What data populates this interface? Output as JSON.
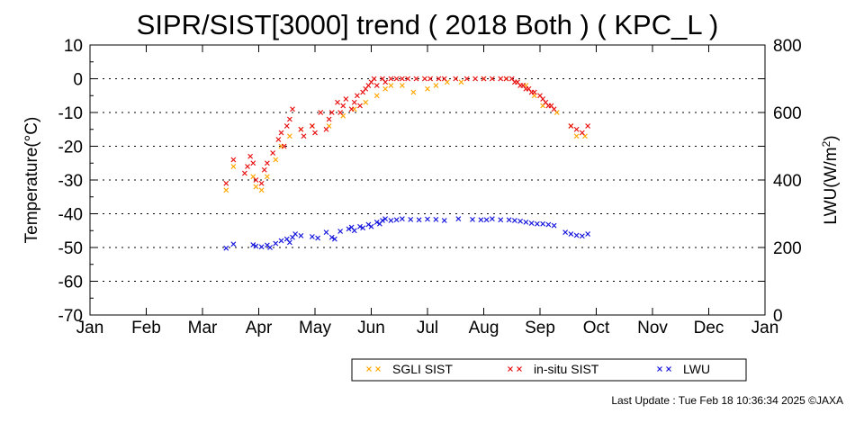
{
  "chart_data": {
    "type": "scatter",
    "title": "SIPR/SIST[3000] trend ( 2018 Both ) ( KPC_L )",
    "ylabel": "Temperature(°C)",
    "y2label_main": "LWU(W/m",
    "y2label_sup": "2",
    "y2label_end": ")",
    "xlabel": "",
    "x_ticks": [
      "Jan",
      "Feb",
      "Mar",
      "Apr",
      "May",
      "Jun",
      "Jul",
      "Aug",
      "Sep",
      "Oct",
      "Nov",
      "Dec",
      "Jan"
    ],
    "ylim": [
      -70,
      10
    ],
    "y_ticks": [
      "10",
      "0",
      "-10",
      "-20",
      "-30",
      "-40",
      "-50",
      "-60",
      "-70"
    ],
    "y2lim": [
      0,
      800
    ],
    "y2_ticks": [
      "800",
      "600",
      "400",
      "200",
      "0"
    ],
    "grid": "dotted horizontal",
    "legend_position": "bottom",
    "marker_symbol": "×",
    "series": [
      {
        "name": "SGLI SIST",
        "color": "#ffa500",
        "axis": "left",
        "points": [
          [
            2.42,
            -33
          ],
          [
            2.55,
            -26
          ],
          [
            2.9,
            -29
          ],
          [
            2.95,
            -32
          ],
          [
            3.05,
            -33
          ],
          [
            3.15,
            -29
          ],
          [
            3.3,
            -24
          ],
          [
            3.4,
            -20
          ],
          [
            3.55,
            -17
          ],
          [
            3.75,
            -15
          ],
          [
            3.95,
            -14
          ],
          [
            4.25,
            -14
          ],
          [
            4.5,
            -11
          ],
          [
            4.7,
            -9
          ],
          [
            4.9,
            -7
          ],
          [
            5.1,
            -5
          ],
          [
            5.25,
            -3
          ],
          [
            5.35,
            -2
          ],
          [
            5.55,
            -2
          ],
          [
            5.75,
            -4
          ],
          [
            6.0,
            -3
          ],
          [
            6.15,
            -2
          ],
          [
            6.35,
            -1
          ],
          [
            6.6,
            -1
          ],
          [
            7.0,
            0
          ],
          [
            7.4,
            0
          ],
          [
            7.75,
            -2
          ],
          [
            7.9,
            -5
          ],
          [
            8.05,
            -8
          ],
          [
            8.3,
            -10
          ],
          [
            8.55,
            -14
          ],
          [
            8.65,
            -17
          ],
          [
            8.8,
            -17
          ]
        ]
      },
      {
        "name": "in-situ SIST",
        "color": "#e81010",
        "axis": "left",
        "points": [
          [
            2.42,
            -31
          ],
          [
            2.55,
            -24
          ],
          [
            2.75,
            -28
          ],
          [
            2.8,
            -26
          ],
          [
            2.85,
            -23
          ],
          [
            2.9,
            -25
          ],
          [
            2.95,
            -30
          ],
          [
            3.05,
            -31
          ],
          [
            3.1,
            -27
          ],
          [
            3.15,
            -25
          ],
          [
            3.25,
            -22
          ],
          [
            3.35,
            -18
          ],
          [
            3.4,
            -16
          ],
          [
            3.45,
            -20
          ],
          [
            3.5,
            -14
          ],
          [
            3.55,
            -12
          ],
          [
            3.6,
            -9
          ],
          [
            3.75,
            -15
          ],
          [
            3.8,
            -17
          ],
          [
            3.95,
            -14
          ],
          [
            4.0,
            -16
          ],
          [
            4.1,
            -10
          ],
          [
            4.2,
            -15
          ],
          [
            4.25,
            -12
          ],
          [
            4.3,
            -10
          ],
          [
            4.4,
            -7
          ],
          [
            4.45,
            -10
          ],
          [
            4.5,
            -8
          ],
          [
            4.55,
            -6
          ],
          [
            4.65,
            -9
          ],
          [
            4.7,
            -7
          ],
          [
            4.75,
            -5
          ],
          [
            4.8,
            -8
          ],
          [
            4.85,
            -4
          ],
          [
            4.9,
            -3
          ],
          [
            4.95,
            -2
          ],
          [
            5.0,
            -1
          ],
          [
            5.05,
            0
          ],
          [
            5.1,
            -2
          ],
          [
            5.2,
            0
          ],
          [
            5.25,
            -1
          ],
          [
            5.35,
            0
          ],
          [
            5.45,
            0
          ],
          [
            5.55,
            0
          ],
          [
            5.65,
            0
          ],
          [
            5.8,
            0
          ],
          [
            5.95,
            0
          ],
          [
            6.05,
            0
          ],
          [
            6.2,
            0
          ],
          [
            6.3,
            0
          ],
          [
            6.5,
            0
          ],
          [
            6.7,
            0
          ],
          [
            6.85,
            0
          ],
          [
            7.0,
            0
          ],
          [
            7.15,
            0
          ],
          [
            7.3,
            0
          ],
          [
            7.4,
            0
          ],
          [
            7.5,
            0
          ],
          [
            7.55,
            -1
          ],
          [
            7.6,
            -1
          ],
          [
            7.65,
            -2
          ],
          [
            7.7,
            -2
          ],
          [
            7.75,
            -3
          ],
          [
            7.8,
            -3
          ],
          [
            7.85,
            -4
          ],
          [
            7.9,
            -4
          ],
          [
            8.0,
            -5
          ],
          [
            8.05,
            -6
          ],
          [
            8.1,
            -7
          ],
          [
            8.15,
            -8
          ],
          [
            8.2,
            -8
          ],
          [
            8.25,
            -9
          ],
          [
            8.55,
            -14
          ],
          [
            8.65,
            -15
          ],
          [
            8.75,
            -16
          ],
          [
            8.85,
            -14
          ]
        ]
      },
      {
        "name": "LWU",
        "color": "#1515dd",
        "axis": "right",
        "points": [
          [
            2.42,
            198
          ],
          [
            2.55,
            210
          ],
          [
            2.9,
            208
          ],
          [
            2.95,
            204
          ],
          [
            3.05,
            202
          ],
          [
            3.15,
            207
          ],
          [
            3.2,
            200
          ],
          [
            3.3,
            212
          ],
          [
            3.4,
            220
          ],
          [
            3.5,
            225
          ],
          [
            3.55,
            215
          ],
          [
            3.6,
            230
          ],
          [
            3.65,
            240
          ],
          [
            3.75,
            235
          ],
          [
            3.95,
            232
          ],
          [
            4.05,
            228
          ],
          [
            4.2,
            245
          ],
          [
            4.3,
            230
          ],
          [
            4.35,
            225
          ],
          [
            4.45,
            248
          ],
          [
            4.6,
            255
          ],
          [
            4.65,
            260
          ],
          [
            4.7,
            250
          ],
          [
            4.8,
            262
          ],
          [
            4.85,
            258
          ],
          [
            4.95,
            268
          ],
          [
            5.0,
            262
          ],
          [
            5.1,
            275
          ],
          [
            5.15,
            270
          ],
          [
            5.2,
            280
          ],
          [
            5.25,
            285
          ],
          [
            5.35,
            280
          ],
          [
            5.45,
            282
          ],
          [
            5.55,
            285
          ],
          [
            5.7,
            283
          ],
          [
            5.85,
            282
          ],
          [
            6.0,
            284
          ],
          [
            6.15,
            283
          ],
          [
            6.3,
            280
          ],
          [
            6.55,
            285
          ],
          [
            6.8,
            283
          ],
          [
            6.95,
            282
          ],
          [
            7.05,
            282
          ],
          [
            7.15,
            285
          ],
          [
            7.3,
            282
          ],
          [
            7.45,
            282
          ],
          [
            7.55,
            280
          ],
          [
            7.65,
            278
          ],
          [
            7.75,
            275
          ],
          [
            7.85,
            272
          ],
          [
            7.95,
            270
          ],
          [
            8.05,
            270
          ],
          [
            8.15,
            268
          ],
          [
            8.25,
            265
          ],
          [
            8.45,
            245
          ],
          [
            8.55,
            240
          ],
          [
            8.65,
            236
          ],
          [
            8.75,
            234
          ],
          [
            8.85,
            240
          ]
        ]
      }
    ]
  },
  "footer": {
    "last_update": "Last Update : Tue Feb 18 10:36:34 2025  ©JAXA"
  }
}
